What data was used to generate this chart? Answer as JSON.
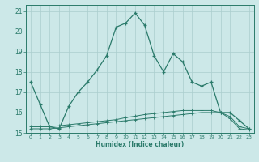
{
  "title": "",
  "xlabel": "Humidex (Indice chaleur)",
  "x_values": [
    0,
    1,
    2,
    3,
    4,
    5,
    6,
    7,
    8,
    9,
    10,
    11,
    12,
    13,
    14,
    15,
    16,
    17,
    18,
    19,
    20,
    21,
    22,
    23
  ],
  "main_line": [
    17.5,
    16.4,
    15.3,
    15.2,
    16.3,
    17.0,
    17.5,
    18.1,
    18.8,
    20.2,
    20.4,
    20.9,
    20.3,
    18.8,
    18.0,
    18.9,
    18.5,
    17.5,
    17.3,
    17.5,
    16.0,
    16.0,
    15.6,
    15.2
  ],
  "flat_line1": [
    15.3,
    15.3,
    15.3,
    15.35,
    15.4,
    15.45,
    15.5,
    15.55,
    15.6,
    15.65,
    15.75,
    15.82,
    15.9,
    15.95,
    16.0,
    16.05,
    16.1,
    16.1,
    16.1,
    16.1,
    16.0,
    15.8,
    15.3,
    15.2
  ],
  "flat_line2": [
    15.2,
    15.2,
    15.2,
    15.25,
    15.3,
    15.35,
    15.4,
    15.45,
    15.5,
    15.55,
    15.6,
    15.65,
    15.7,
    15.75,
    15.8,
    15.85,
    15.9,
    15.95,
    16.0,
    16.0,
    16.0,
    15.7,
    15.2,
    15.15
  ],
  "line_color": "#2a7a6a",
  "background_color": "#cce8e8",
  "grid_color": "#aacece",
  "ylim": [
    15.0,
    21.3
  ],
  "yticks": [
    15,
    16,
    17,
    18,
    19,
    20,
    21
  ],
  "xlim": [
    -0.5,
    23.5
  ]
}
